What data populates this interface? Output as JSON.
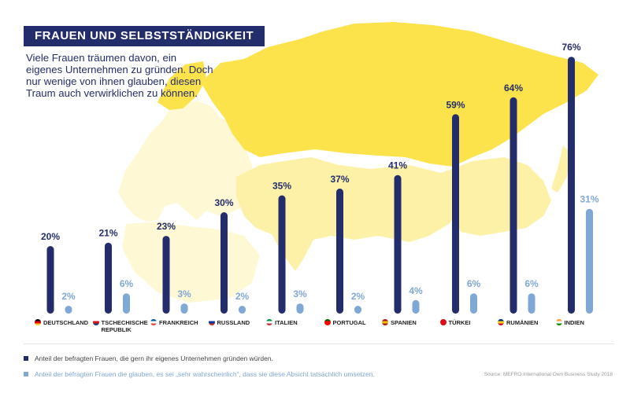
{
  "header": {
    "title": "FRAUEN UND SELBSTSTÄNDIGKEIT",
    "subtitle": "Viele Frauen träumen davon, ein eigenes Unternehmen zu gründen. Doch nur wenige von ihnen glauben, diesen Traum auch verwirklichen zu können."
  },
  "colors": {
    "dark": "#232d6b",
    "light": "#7fa8d6",
    "map": "#fce34b",
    "map_light": "#fdf1a8",
    "map_pale": "#fef8d4"
  },
  "chart_data": {
    "type": "bar",
    "title": "FRAUEN UND SELBSTSTÄNDIGKEIT",
    "categories": [
      "DEUTSCHLAND",
      "TSCHECHISCHE\nREPUBLIK",
      "FRANKREICH",
      "RUSSLAND",
      "ITALIEN",
      "PORTUGAL",
      "SPANIEN",
      "TÜRKEI",
      "RUMÄNIEN",
      "INDIEN"
    ],
    "flags": [
      [
        "#000000",
        "#dd0000",
        "#ffce00"
      ],
      [
        "#ffffff",
        "#d7141a",
        "#11457e"
      ],
      [
        "#0055a4",
        "#ffffff",
        "#ef4135"
      ],
      [
        "#ffffff",
        "#0039a6",
        "#d52b1e"
      ],
      [
        "#009246",
        "#ffffff",
        "#ce2b37"
      ],
      [
        "#006600",
        "#ff0000",
        "#ff0000"
      ],
      [
        "#aa151b",
        "#f1bf00",
        "#aa151b"
      ],
      [
        "#e30a17",
        "#e30a17",
        "#e30a17"
      ],
      [
        "#002b7f",
        "#fcd116",
        "#ce1126"
      ],
      [
        "#ff9933",
        "#ffffff",
        "#138808"
      ]
    ],
    "series": [
      {
        "name": "Anteil der befragten Frauen, die gern ihr eigenes Unternehmen gründen würden.",
        "values": [
          20,
          21,
          23,
          30,
          35,
          37,
          41,
          59,
          64,
          76
        ]
      },
      {
        "name": "Anteil der befragten Frauen die glauben, es sei „sehr wahrscheinlich“, dass sie diese Absicht tatsächlich umsetzen.",
        "values": [
          2,
          6,
          3,
          2,
          3,
          2,
          4,
          6,
          6,
          31
        ]
      }
    ],
    "value_suffix": "%",
    "ylim": [
      0,
      80
    ]
  },
  "legend": {
    "dark": "Anteil der befragten Frauen, die gern ihr eigenes Unternehmen gründen würden.",
    "light": "Anteil der befragten Frauen die glauben, es sei „sehr wahrscheinlich“, dass sie diese Absicht tatsächlich umsetzen."
  },
  "source": "Source: MEFRO International Own Business Study 2018"
}
